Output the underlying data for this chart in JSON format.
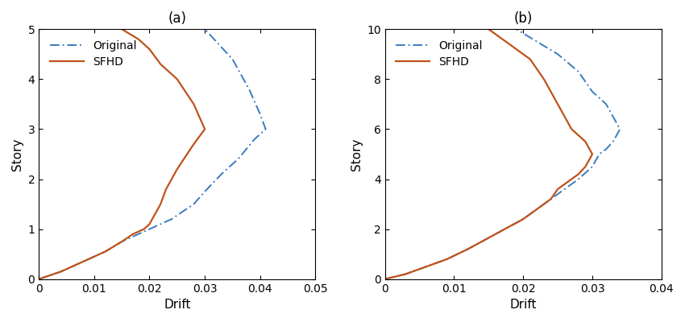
{
  "panel_a": {
    "title": "(a)",
    "xlabel": "Drift",
    "ylabel": "Story",
    "xlim": [
      0,
      0.05
    ],
    "ylim": [
      0,
      5
    ],
    "xticks": [
      0,
      0.01,
      0.02,
      0.03,
      0.04,
      0.05
    ],
    "yticks": [
      0,
      1,
      2,
      3,
      4,
      5
    ],
    "original_drift": [
      0.0,
      0.004,
      0.008,
      0.012,
      0.015,
      0.018,
      0.02,
      0.022,
      0.024,
      0.026,
      0.028,
      0.03,
      0.033,
      0.036,
      0.039,
      0.041,
      0.04,
      0.038,
      0.035,
      0.03
    ],
    "original_story": [
      0.0,
      0.15,
      0.35,
      0.55,
      0.75,
      0.9,
      1.0,
      1.1,
      1.2,
      1.35,
      1.5,
      1.75,
      2.1,
      2.4,
      2.8,
      3.0,
      3.3,
      3.8,
      4.4,
      5.0
    ],
    "sfhd_drift": [
      0.0,
      0.004,
      0.008,
      0.012,
      0.015,
      0.017,
      0.019,
      0.02,
      0.021,
      0.022,
      0.023,
      0.025,
      0.028,
      0.03,
      0.028,
      0.025,
      0.022,
      0.02,
      0.018,
      0.015
    ],
    "sfhd_story": [
      0.0,
      0.15,
      0.35,
      0.55,
      0.75,
      0.9,
      1.0,
      1.1,
      1.3,
      1.5,
      1.8,
      2.2,
      2.7,
      3.0,
      3.5,
      4.0,
      4.3,
      4.6,
      4.8,
      5.0
    ]
  },
  "panel_b": {
    "title": "(b)",
    "xlabel": "Drift",
    "ylabel": "Story",
    "xlim": [
      0,
      0.04
    ],
    "ylim": [
      0,
      10
    ],
    "xticks": [
      0,
      0.01,
      0.02,
      0.03,
      0.04
    ],
    "yticks": [
      0,
      2,
      4,
      6,
      8,
      10
    ],
    "original_drift": [
      0.0,
      0.003,
      0.006,
      0.009,
      0.012,
      0.014,
      0.016,
      0.018,
      0.02,
      0.022,
      0.024,
      0.026,
      0.028,
      0.03,
      0.031,
      0.032,
      0.033,
      0.034,
      0.033,
      0.032,
      0.03,
      0.028,
      0.025,
      0.022,
      0.019
    ],
    "original_story": [
      0.0,
      0.2,
      0.5,
      0.8,
      1.2,
      1.5,
      1.8,
      2.1,
      2.4,
      2.8,
      3.2,
      3.6,
      4.0,
      4.5,
      5.0,
      5.2,
      5.5,
      6.0,
      6.5,
      7.0,
      7.5,
      8.3,
      9.0,
      9.5,
      10.0
    ],
    "sfhd_drift": [
      0.0,
      0.003,
      0.006,
      0.009,
      0.012,
      0.014,
      0.016,
      0.018,
      0.02,
      0.022,
      0.024,
      0.025,
      0.026,
      0.027,
      0.028,
      0.029,
      0.03,
      0.029,
      0.027,
      0.025,
      0.023,
      0.021,
      0.019,
      0.017,
      0.015
    ],
    "sfhd_story": [
      0.0,
      0.2,
      0.5,
      0.8,
      1.2,
      1.5,
      1.8,
      2.1,
      2.4,
      2.8,
      3.2,
      3.6,
      3.8,
      4.0,
      4.2,
      4.5,
      5.0,
      5.5,
      6.0,
      7.0,
      8.0,
      8.8,
      9.2,
      9.6,
      10.0
    ]
  },
  "original_color": "#3b7bbf",
  "sfhd_color": "#c0521a",
  "original_lw": 1.4,
  "sfhd_lw": 1.6,
  "legend_fontsize": 10,
  "label_fontsize": 11,
  "title_fontsize": 12,
  "tick_fontsize": 10
}
